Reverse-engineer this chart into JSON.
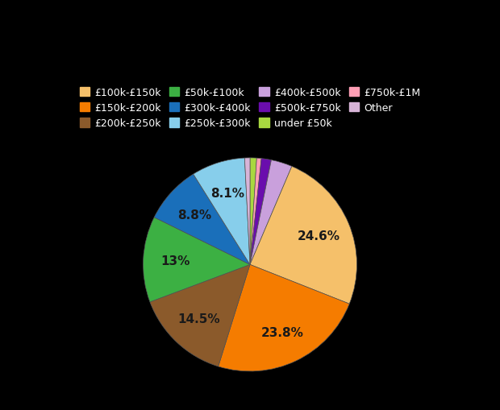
{
  "labels": [
    "£100k-£150k",
    "£150k-£200k",
    "£200k-£250k",
    "£50k-£100k",
    "£300k-£400k",
    "£250k-£300k",
    "£400k-£500k",
    "£500k-£750k",
    "under £50k",
    "£750k-£1M",
    "Other"
  ],
  "values": [
    24.6,
    23.8,
    14.5,
    13.0,
    8.8,
    8.1,
    3.2,
    1.5,
    1.0,
    0.7,
    0.8
  ],
  "colors": [
    "#f5c06a",
    "#f57c00",
    "#8b5a2b",
    "#3cb043",
    "#1a6fba",
    "#87ceeb",
    "#c9a0dc",
    "#6a0dad",
    "#a8d840",
    "#ff9eb5",
    "#d8b4d8"
  ],
  "autopct_labels": [
    "24.6%",
    "23.8%",
    "14.5%",
    "13%",
    "8.8%",
    "8.1%",
    "",
    "",
    "",
    "",
    ""
  ],
  "background_color": "#000000",
  "text_color": "#1a1a1a",
  "legend_text_color": "#ffffff",
  "startangle": 90,
  "legend_order": [
    0,
    1,
    2,
    3,
    4,
    5,
    6,
    7,
    8,
    9,
    10
  ]
}
